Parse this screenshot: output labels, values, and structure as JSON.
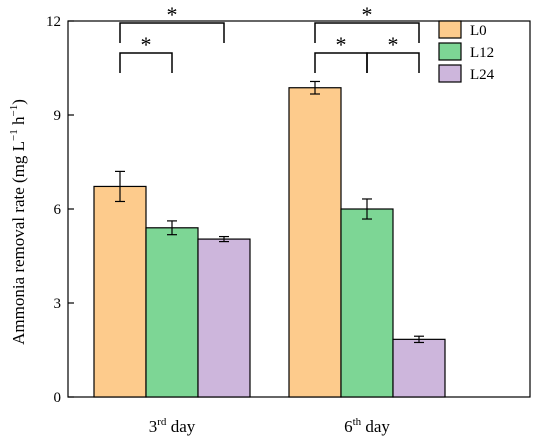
{
  "chart_data": {
    "type": "bar",
    "title": "",
    "xlabel": "",
    "ylabel": "Ammonia removal rate (mg L⁻¹ h⁻¹)",
    "ylabel_parts": {
      "main": "Ammonia removal rate (mg L",
      "sup1": "−1",
      "mid": " h",
      "sup2": "−1",
      "end": ")"
    },
    "ylim": [
      0,
      12
    ],
    "yticks": [
      0,
      3,
      6,
      9,
      12
    ],
    "categories": [
      {
        "base": "3",
        "sup": "rd",
        "rest": " day"
      },
      {
        "base": "6",
        "sup": "th",
        "rest": " day"
      }
    ],
    "categories_text": [
      "3rd day",
      "6th day"
    ],
    "series": [
      {
        "name": "L0",
        "color": "#FDCB8C",
        "values": [
          6.72,
          9.87
        ],
        "errors": [
          0.48,
          0.2
        ]
      },
      {
        "name": "L12",
        "color": "#7DD695",
        "values": [
          5.4,
          6.0
        ],
        "errors": [
          0.22,
          0.32
        ]
      },
      {
        "name": "L24",
        "color": "#CDB6DC",
        "values": [
          5.04,
          1.84
        ],
        "errors": [
          0.08,
          0.1
        ]
      }
    ],
    "legend_position": "top-right",
    "grid": false,
    "significance": [
      {
        "category": 0,
        "from": 0,
        "to": 1,
        "label": "*",
        "level": 0
      },
      {
        "category": 0,
        "from": 0,
        "to": 2,
        "label": "*",
        "level": 1
      },
      {
        "category": 1,
        "from": 0,
        "to": 1,
        "label": "*",
        "level": 0
      },
      {
        "category": 1,
        "from": 1,
        "to": 2,
        "label": "*",
        "level": 0
      },
      {
        "category": 1,
        "from": 0,
        "to": 2,
        "label": "*",
        "level": 1
      }
    ]
  }
}
